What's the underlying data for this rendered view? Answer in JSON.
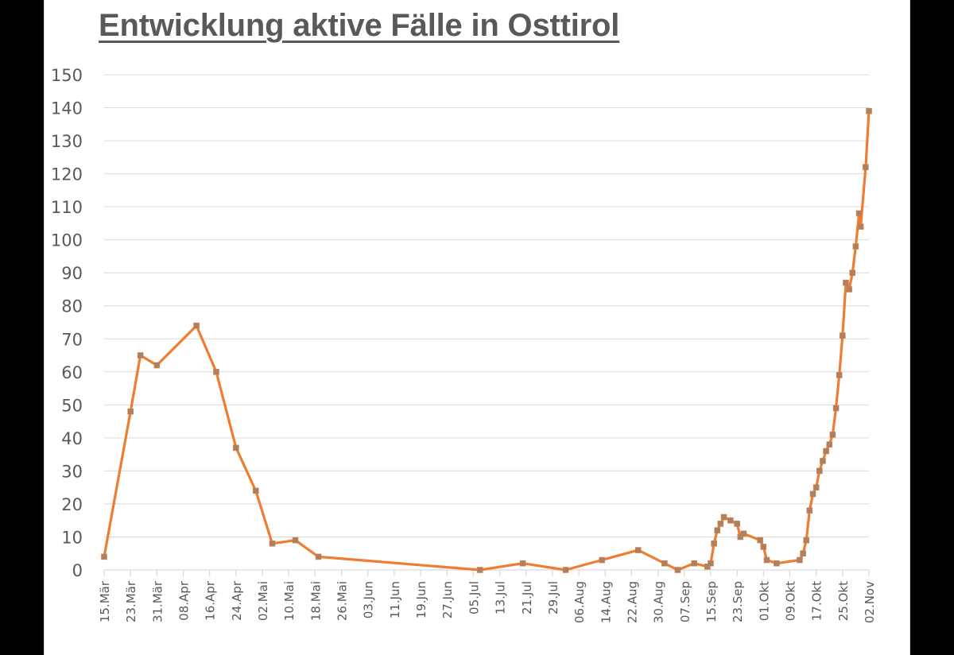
{
  "title": "Entwicklung aktive Fälle in Osttirol",
  "colors": {
    "line": "#ED7D31",
    "marker": "#A5826A",
    "gridline": "#D9D9D9",
    "axis_text": "#595959",
    "title_text": "#595959"
  },
  "chart_data": {
    "type": "line",
    "title": "Entwicklung aktive Fälle in Osttirol",
    "xlabel": "",
    "ylabel": "",
    "ylim": [
      0,
      150
    ],
    "ytick_step": 10,
    "yticks": [
      0,
      10,
      20,
      30,
      40,
      50,
      60,
      70,
      80,
      90,
      100,
      110,
      120,
      130,
      140,
      150
    ],
    "grid": true,
    "legend": null,
    "x_tick_labels": [
      "15.Mär",
      "23.Mär",
      "31.Mär",
      "08.Apr",
      "16.Apr",
      "24.Apr",
      "02.Mai",
      "10.Mai",
      "18.Mai",
      "26.Mai",
      "03.Jun",
      "11.Jun",
      "19.Jun",
      "27.Jun",
      "05.Jul",
      "13.Jul",
      "21.Jul",
      "29.Jul",
      "06.Aug",
      "14.Aug",
      "22.Aug",
      "30.Aug",
      "07.Sep",
      "15.Sep",
      "23.Sep",
      "01.Okt",
      "09.Okt",
      "17.Okt",
      "25.Okt",
      "02.Nov"
    ],
    "x_range_days": [
      0,
      232
    ],
    "x_note": "x = days since 15.Mär (date axis, ticks every 8 days)",
    "series": [
      {
        "name": "aktive Fälle",
        "points": [
          {
            "day": 0,
            "value": 4
          },
          {
            "day": 8,
            "value": 48
          },
          {
            "day": 11,
            "value": 65
          },
          {
            "day": 16,
            "value": 62
          },
          {
            "day": 28,
            "value": 74
          },
          {
            "day": 34,
            "value": 60
          },
          {
            "day": 40,
            "value": 37
          },
          {
            "day": 46,
            "value": 24
          },
          {
            "day": 51,
            "value": 8
          },
          {
            "day": 58,
            "value": 9
          },
          {
            "day": 65,
            "value": 4
          },
          {
            "day": 114,
            "value": 0
          },
          {
            "day": 127,
            "value": 2
          },
          {
            "day": 140,
            "value": 0
          },
          {
            "day": 151,
            "value": 3
          },
          {
            "day": 162,
            "value": 6
          },
          {
            "day": 170,
            "value": 2
          },
          {
            "day": 174,
            "value": 0
          },
          {
            "day": 179,
            "value": 2
          },
          {
            "day": 183,
            "value": 1
          },
          {
            "day": 184,
            "value": 2
          },
          {
            "day": 185,
            "value": 8
          },
          {
            "day": 186,
            "value": 12
          },
          {
            "day": 187,
            "value": 14
          },
          {
            "day": 188,
            "value": 16
          },
          {
            "day": 190,
            "value": 15
          },
          {
            "day": 192,
            "value": 14
          },
          {
            "day": 193,
            "value": 10
          },
          {
            "day": 194,
            "value": 11
          },
          {
            "day": 199,
            "value": 9
          },
          {
            "day": 200,
            "value": 7
          },
          {
            "day": 201,
            "value": 3
          },
          {
            "day": 204,
            "value": 2
          },
          {
            "day": 211,
            "value": 3
          },
          {
            "day": 212,
            "value": 5
          },
          {
            "day": 213,
            "value": 9
          },
          {
            "day": 214,
            "value": 18
          },
          {
            "day": 215,
            "value": 23
          },
          {
            "day": 216,
            "value": 25
          },
          {
            "day": 217,
            "value": 30
          },
          {
            "day": 218,
            "value": 33
          },
          {
            "day": 219,
            "value": 36
          },
          {
            "day": 220,
            "value": 38
          },
          {
            "day": 221,
            "value": 41
          },
          {
            "day": 222,
            "value": 49
          },
          {
            "day": 223,
            "value": 59
          },
          {
            "day": 224,
            "value": 71
          },
          {
            "day": 225,
            "value": 87
          },
          {
            "day": 226,
            "value": 85
          },
          {
            "day": 227,
            "value": 90
          },
          {
            "day": 228,
            "value": 98
          },
          {
            "day": 229,
            "value": 108
          },
          {
            "day": 229.5,
            "value": 104
          },
          {
            "day": 231,
            "value": 122
          },
          {
            "day": 232,
            "value": 139
          }
        ]
      }
    ]
  }
}
